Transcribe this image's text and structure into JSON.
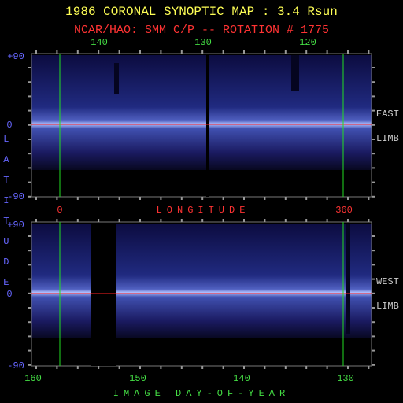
{
  "header": {
    "title": "1986 CORONAL SYNOPTIC MAP : 3.4 Rsun",
    "subtitle": "NCAR/HAO: SMM C/P -- ROTATION # 1775"
  },
  "top_axis": {
    "labels": [
      "140",
      "130",
      "120"
    ]
  },
  "east_panel": {
    "lat_labels": [
      "+90",
      "0",
      "-90"
    ],
    "side_labels": [
      "EAST",
      "LIMB"
    ]
  },
  "longitude_axis": {
    "start": "0",
    "title": "LONGITUDE",
    "end": "360"
  },
  "latitude_title": "LATITUDE",
  "west_panel": {
    "lat_labels": [
      "+90",
      "0",
      "-90"
    ],
    "side_labels": [
      "WEST",
      "LIMB"
    ]
  },
  "bottom_axis": {
    "labels": [
      "160",
      "150",
      "140",
      "130"
    ],
    "title": "IMAGE DAY-OF-YEAR"
  }
}
